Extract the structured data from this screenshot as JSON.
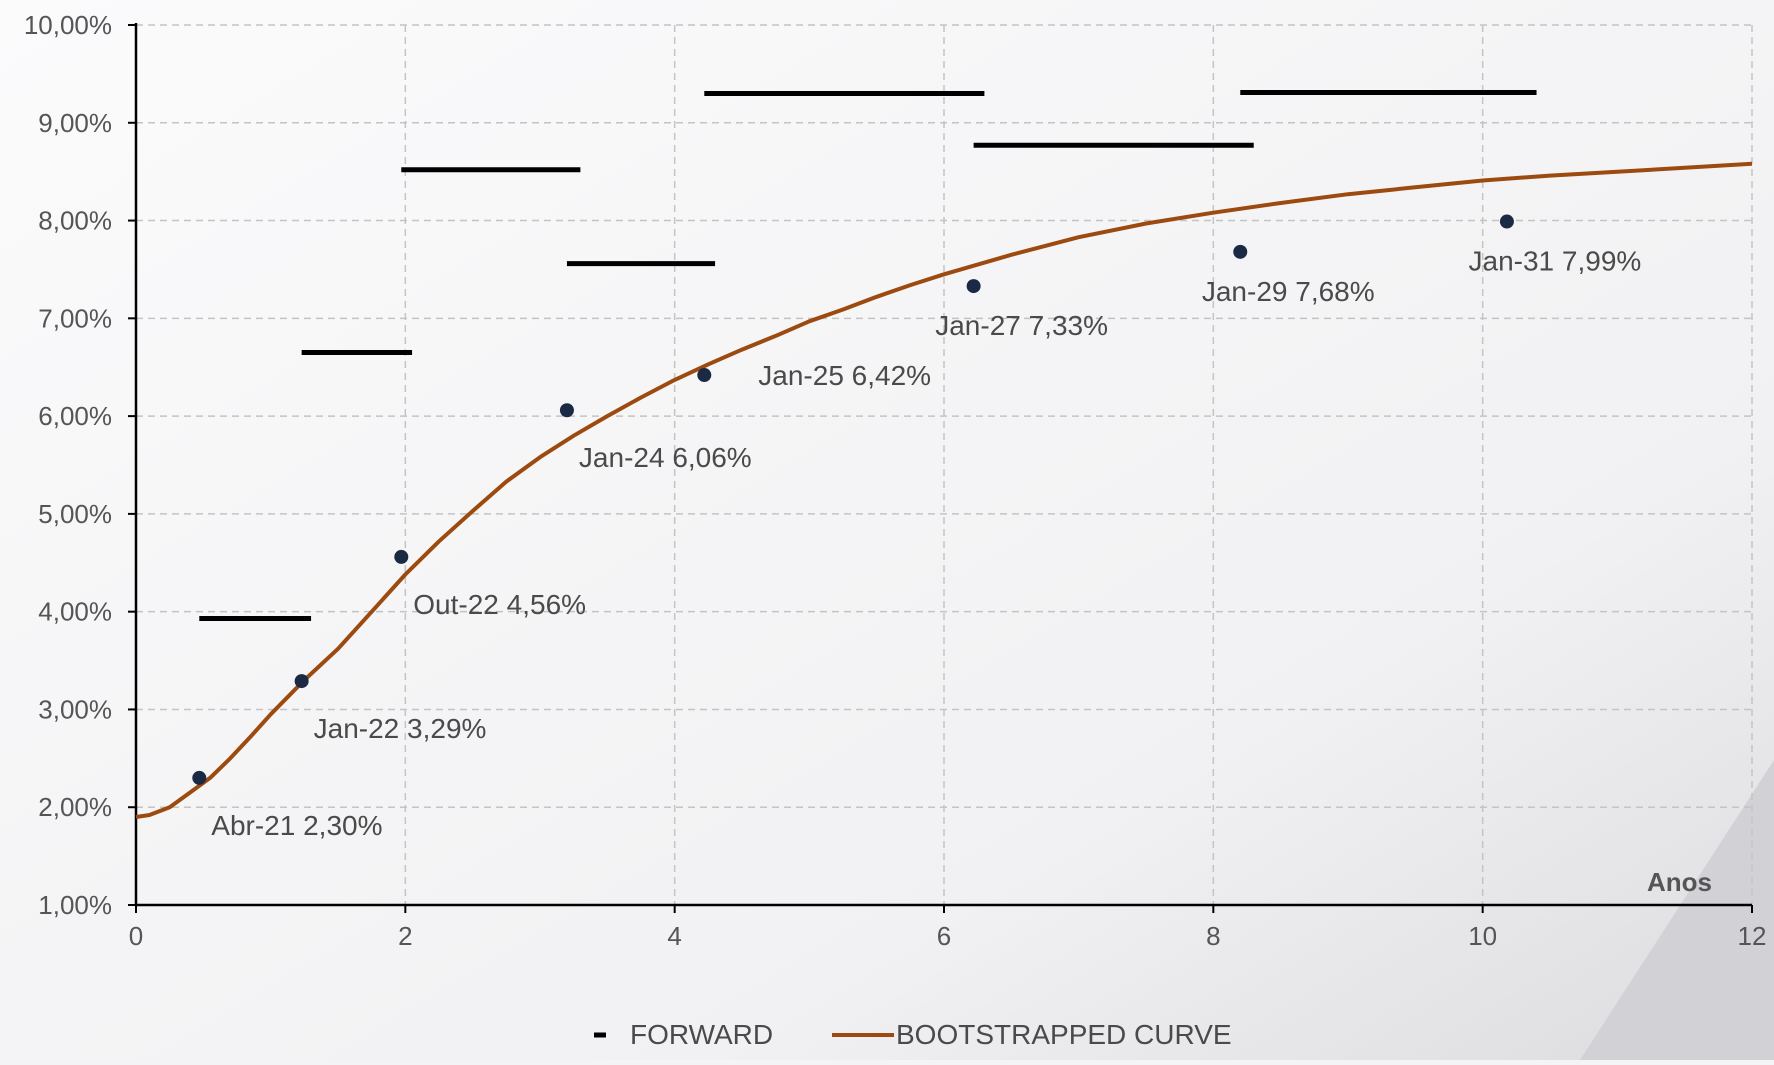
{
  "chart_data": {
    "type": "line",
    "xlabel": "Anos",
    "ylabel": "",
    "xlim": [
      0,
      12
    ],
    "ylim": [
      1.0,
      10.0
    ],
    "grid": true,
    "legend_placement": "bottom-center",
    "x_ticks": [
      0,
      2,
      4,
      6,
      8,
      10,
      12
    ],
    "x_tick_labels": [
      "0",
      "2",
      "4",
      "6",
      "8",
      "10",
      "12"
    ],
    "y_ticks": [
      1,
      2,
      3,
      4,
      5,
      6,
      7,
      8,
      9,
      10
    ],
    "y_tick_labels": [
      "1,00%",
      "2,00%",
      "3,00%",
      "4,00%",
      "5,00%",
      "6,00%",
      "7,00%",
      "8,00%",
      "9,00%",
      "10,00%"
    ],
    "colors": {
      "forward": "#000000",
      "curve": "#9c4a0f",
      "points": "#1b2a44",
      "grid": "#c4c4c4",
      "axis": "#000000"
    },
    "legend": [
      {
        "name": "FORWARD"
      },
      {
        "name": "BOOTSTRAPPED CURVE"
      }
    ],
    "series": [
      {
        "name": "FORWARD",
        "kind": "step-segments",
        "segments": [
          {
            "x_start": 0.47,
            "x_end": 1.3,
            "y": 3.93
          },
          {
            "x_start": 1.23,
            "x_end": 2.05,
            "y": 6.65
          },
          {
            "x_start": 1.97,
            "x_end": 3.3,
            "y": 8.52
          },
          {
            "x_start": 3.2,
            "x_end": 4.3,
            "y": 7.56
          },
          {
            "x_start": 4.22,
            "x_end": 6.3,
            "y": 9.3
          },
          {
            "x_start": 6.22,
            "x_end": 8.3,
            "y": 8.77
          },
          {
            "x_start": 8.2,
            "x_end": 10.4,
            "y": 9.31
          }
        ]
      },
      {
        "name": "BOOTSTRAPPED CURVE",
        "kind": "line",
        "x": [
          0,
          0.1,
          0.25,
          0.4,
          0.55,
          0.7,
          0.85,
          1.0,
          1.25,
          1.5,
          1.75,
          2.0,
          2.25,
          2.5,
          2.75,
          3.0,
          3.25,
          3.5,
          3.75,
          4.0,
          4.25,
          4.5,
          4.75,
          5.0,
          5.25,
          5.5,
          5.75,
          6.0,
          6.5,
          7.0,
          7.5,
          8.0,
          8.5,
          9.0,
          9.5,
          10.0,
          10.5,
          11.0,
          11.5,
          12.0
        ],
        "y": [
          1.9,
          1.92,
          2.0,
          2.15,
          2.3,
          2.5,
          2.72,
          2.95,
          3.3,
          3.62,
          4.0,
          4.38,
          4.72,
          5.03,
          5.33,
          5.58,
          5.8,
          6.0,
          6.19,
          6.37,
          6.53,
          6.68,
          6.82,
          6.97,
          7.09,
          7.22,
          7.34,
          7.45,
          7.65,
          7.83,
          7.97,
          8.08,
          8.18,
          8.27,
          8.34,
          8.41,
          8.46,
          8.5,
          8.54,
          8.58
        ]
      },
      {
        "name": "",
        "kind": "points",
        "points": [
          {
            "x": 0.47,
            "y": 2.3,
            "label": "Abr-21 2,30%",
            "label_pos": "below-right"
          },
          {
            "x": 1.23,
            "y": 3.29,
            "label": "Jan-22 3,29%",
            "label_pos": "below-right"
          },
          {
            "x": 1.97,
            "y": 4.56,
            "label": "Out-22 4,56%",
            "label_pos": "below-right"
          },
          {
            "x": 3.2,
            "y": 6.06,
            "label": "Jan-24 6,06%",
            "label_pos": "below-right"
          },
          {
            "x": 4.22,
            "y": 6.42,
            "label": "Jan-25 6,42%",
            "label_pos": "right"
          },
          {
            "x": 6.22,
            "y": 7.33,
            "label": "Jan-27 7,33%",
            "label_pos": "below"
          },
          {
            "x": 8.2,
            "y": 7.68,
            "label": "Jan-29 7,68%",
            "label_pos": "below"
          },
          {
            "x": 10.18,
            "y": 7.99,
            "label": "Jan-31 7,99%",
            "label_pos": "below"
          }
        ]
      }
    ]
  }
}
